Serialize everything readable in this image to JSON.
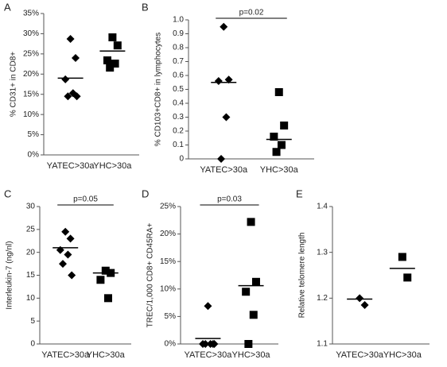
{
  "chart_data": [
    {
      "type": "dot",
      "panel_label": "A",
      "y_label": "% CD31+ in CD8+",
      "categories": [
        "YATEC>30a",
        "YHC>30a"
      ],
      "groups": [
        {
          "marker": "diamond",
          "values": [
            28.7,
            24,
            18.7,
            15.3,
            14.5,
            14.5
          ]
        },
        {
          "marker": "square",
          "values": [
            29.1,
            27.1,
            23.4,
            22.6,
            21.6
          ]
        }
      ],
      "means": [
        19,
        25.7
      ],
      "ylim": [
        0,
        35
      ],
      "yticks": [
        {
          "value": 0,
          "label": "0%"
        },
        {
          "value": 5,
          "label": "5%"
        },
        {
          "value": 10,
          "label": "10%"
        },
        {
          "value": 15,
          "label": "15%"
        },
        {
          "value": 20,
          "label": "20%"
        },
        {
          "value": 25,
          "label": "25%"
        },
        {
          "value": 30,
          "label": "30%"
        },
        {
          "value": 35,
          "label": "35%"
        }
      ],
      "color": "#000000"
    },
    {
      "type": "dot",
      "panel_label": "B",
      "y_label": "% CD103+CD8+ in lymphocytes",
      "annotation": "p=0.02",
      "categories": [
        "YATEC>30a",
        "YHC>30a"
      ],
      "groups": [
        {
          "marker": "diamond",
          "values": [
            0.95,
            0.57,
            0.56,
            0.3,
            0
          ]
        },
        {
          "marker": "square",
          "values": [
            0.48,
            0.24,
            0.16,
            0.1,
            0.05
          ]
        }
      ],
      "means": [
        0.55,
        0.14
      ],
      "ylim": [
        0,
        1
      ],
      "yticks": [
        0,
        0.1,
        0.2,
        0.3,
        0.4,
        0.5,
        0.6,
        0.7,
        0.8,
        0.9,
        {
          "value": 1,
          "label": "1.0"
        }
      ],
      "color": "#000000"
    },
    {
      "type": "dot",
      "panel_label": "C",
      "y_label": "Interleukin-7 (ng/nl)",
      "annotation": "p=0.05",
      "categories": [
        "YATEC>30a",
        "YHC>30a"
      ],
      "groups": [
        {
          "marker": "diamond",
          "values": [
            24.5,
            23,
            20.5,
            19.5,
            17.5,
            15
          ]
        },
        {
          "marker": "square",
          "values": [
            16,
            15.5,
            14,
            10
          ]
        }
      ],
      "means": [
        21,
        15.5
      ],
      "ylim": [
        0,
        30
      ],
      "yticks": [
        0,
        5,
        10,
        15,
        20,
        25,
        30
      ],
      "color": "#000000"
    },
    {
      "type": "dot",
      "panel_label": "D",
      "y_label": "TREC/1,000 CD8+ CD45RA+",
      "annotation": "p=0.03",
      "categories": [
        "YATEC>30a",
        "YHC>30a"
      ],
      "groups": [
        {
          "marker": "diamond",
          "values": [
            6.9,
            0,
            0,
            0,
            0,
            0
          ]
        },
        {
          "marker": "square",
          "values": [
            22.2,
            11.3,
            9.5,
            5.3,
            0
          ]
        }
      ],
      "means": [
        1,
        10.6
      ],
      "ylim": [
        0,
        25
      ],
      "yticks": [
        {
          "value": 0,
          "label": "0%"
        },
        {
          "value": 5,
          "label": "5%"
        },
        {
          "value": 10,
          "label": "10%"
        },
        {
          "value": 15,
          "label": "15%"
        },
        {
          "value": 20,
          "label": "20%"
        },
        {
          "value": 25,
          "label": "25%"
        }
      ],
      "color": "#000000"
    },
    {
      "type": "dot",
      "panel_label": "E",
      "y_label": "Relative telomere length",
      "categories": [
        "YATEC>30a",
        "YHC>30a"
      ],
      "groups": [
        {
          "marker": "diamond",
          "values": [
            1.2,
            1.185
          ]
        },
        {
          "marker": "square",
          "values": [
            1.29,
            1.245
          ]
        }
      ],
      "means": [
        1.198,
        1.265
      ],
      "ylim": [
        1.1,
        1.4
      ],
      "yticks": [
        1.1,
        1.2,
        1.3,
        1.4
      ],
      "color": "#000000"
    }
  ]
}
